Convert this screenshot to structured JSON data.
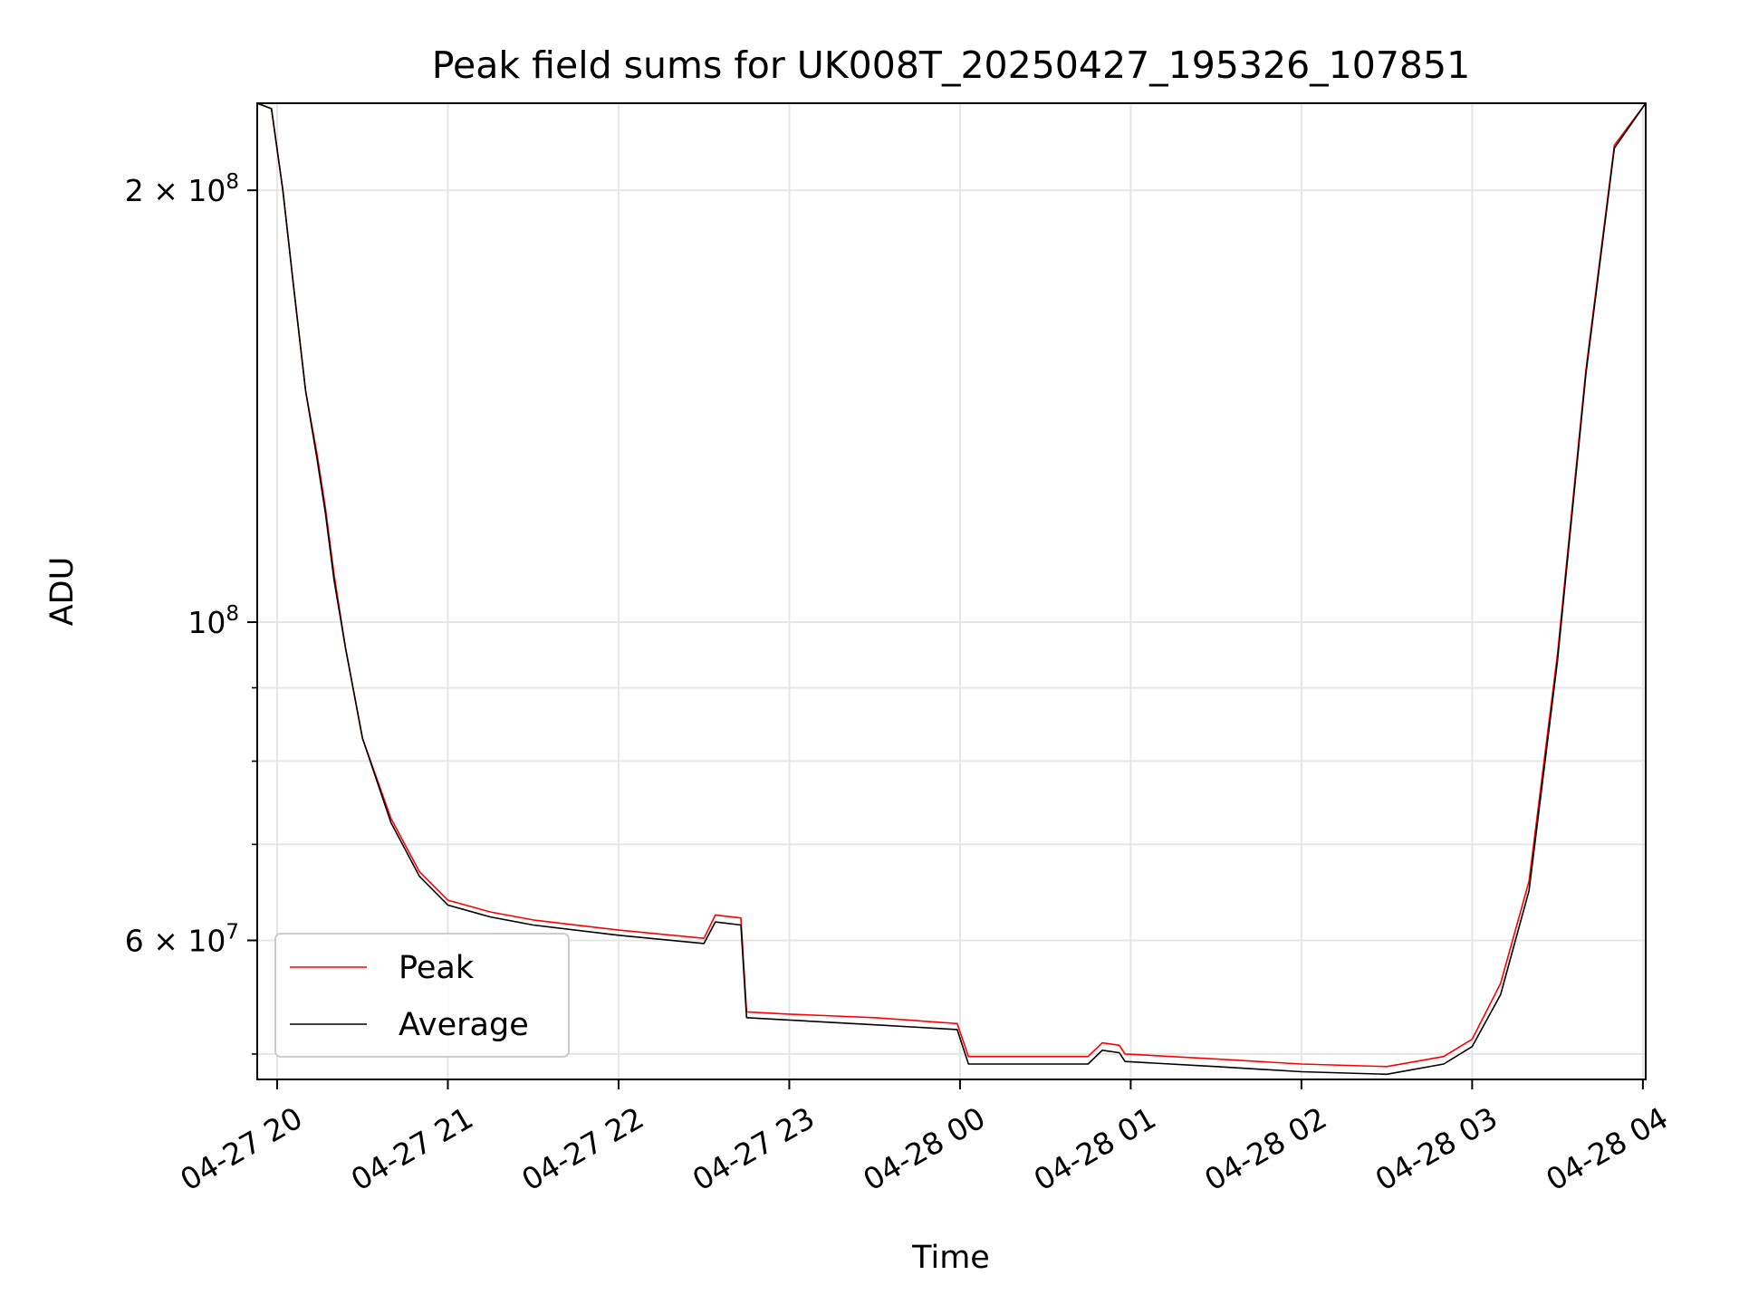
{
  "chart_data": {
    "type": "line",
    "title": "Peak field sums for UK008T_20250427_195326_107851",
    "xlabel": "Time",
    "ylabel": "ADU",
    "yscale": "log",
    "ylim": [
      48000000,
      230000000
    ],
    "xlim": [
      "2025-04-27 19:53",
      "2025-04-28 04:01"
    ],
    "grid": true,
    "legend_position": "lower left",
    "x_ticks": [
      {
        "at": "2025-04-27 20:00",
        "label": "04-27 20"
      },
      {
        "at": "2025-04-27 21:00",
        "label": "04-27 21"
      },
      {
        "at": "2025-04-27 22:00",
        "label": "04-27 22"
      },
      {
        "at": "2025-04-27 23:00",
        "label": "04-27 23"
      },
      {
        "at": "2025-04-28 00:00",
        "label": "04-28 00"
      },
      {
        "at": "2025-04-28 01:00",
        "label": "04-28 01"
      },
      {
        "at": "2025-04-28 02:00",
        "label": "04-28 02"
      },
      {
        "at": "2025-04-28 03:00",
        "label": "04-28 03"
      },
      {
        "at": "2025-04-28 04:00",
        "label": "04-28 04"
      }
    ],
    "y_major_ticks": [
      {
        "value": 200000000,
        "base": "2 × 10",
        "exp": "8"
      },
      {
        "value": 100000000,
        "base": "10",
        "exp": "8"
      },
      {
        "value": 60000000,
        "base": "6 × 10",
        "exp": "7"
      }
    ],
    "y_minor_ticks": [
      50000000,
      70000000,
      80000000,
      90000000
    ],
    "series": [
      {
        "name": "Peak",
        "color": "#ff0000",
        "points": [
          [
            "2025-04-27 19:53",
            230000000
          ],
          [
            "2025-04-27 19:58",
            228000000
          ],
          [
            "2025-04-27 20:02",
            200000000
          ],
          [
            "2025-04-27 20:06",
            170000000
          ],
          [
            "2025-04-27 20:10",
            145000000
          ],
          [
            "2025-04-27 20:14",
            131000000
          ],
          [
            "2025-04-27 20:17",
            120000000
          ],
          [
            "2025-04-27 20:20",
            108000000
          ],
          [
            "2025-04-27 20:24",
            96000000
          ],
          [
            "2025-04-27 20:30",
            83000000
          ],
          [
            "2025-04-27 20:40",
            73000000
          ],
          [
            "2025-04-27 20:50",
            67000000
          ],
          [
            "2025-04-27 21:00",
            64000000
          ],
          [
            "2025-04-27 21:15",
            62800000
          ],
          [
            "2025-04-27 21:30",
            62000000
          ],
          [
            "2025-04-27 22:00",
            61000000
          ],
          [
            "2025-04-27 22:30",
            60200000
          ],
          [
            "2025-04-27 22:34",
            62500000
          ],
          [
            "2025-04-27 22:43",
            62200000
          ],
          [
            "2025-04-27 22:45",
            53500000
          ],
          [
            "2025-04-27 23:00",
            53300000
          ],
          [
            "2025-04-27 23:30",
            53000000
          ],
          [
            "2025-04-27 23:59",
            52500000
          ],
          [
            "2025-04-28 00:03",
            49800000
          ],
          [
            "2025-04-28 00:45",
            49800000
          ],
          [
            "2025-04-28 00:50",
            50900000
          ],
          [
            "2025-04-28 00:56",
            50700000
          ],
          [
            "2025-04-28 00:58",
            50000000
          ],
          [
            "2025-04-28 01:30",
            49600000
          ],
          [
            "2025-04-28 02:00",
            49200000
          ],
          [
            "2025-04-28 02:30",
            49000000
          ],
          [
            "2025-04-28 02:50",
            49800000
          ],
          [
            "2025-04-28 03:00",
            51200000
          ],
          [
            "2025-04-28 03:10",
            56000000
          ],
          [
            "2025-04-28 03:20",
            66000000
          ],
          [
            "2025-04-28 03:30",
            95000000
          ],
          [
            "2025-04-28 03:40",
            150000000
          ],
          [
            "2025-04-28 03:50",
            215000000
          ],
          [
            "2025-04-28 04:01",
            230000000
          ]
        ]
      },
      {
        "name": "Average",
        "color": "#000000",
        "points": [
          [
            "2025-04-27 19:53",
            230000000
          ],
          [
            "2025-04-27 19:58",
            228000000
          ],
          [
            "2025-04-27 20:02",
            200000000
          ],
          [
            "2025-04-27 20:06",
            170000000
          ],
          [
            "2025-04-27 20:10",
            145000000
          ],
          [
            "2025-04-27 20:14",
            130000000
          ],
          [
            "2025-04-27 20:17",
            119000000
          ],
          [
            "2025-04-27 20:20",
            107000000
          ],
          [
            "2025-04-27 20:24",
            96000000
          ],
          [
            "2025-04-27 20:30",
            83000000
          ],
          [
            "2025-04-27 20:40",
            72500000
          ],
          [
            "2025-04-27 20:50",
            66500000
          ],
          [
            "2025-04-27 21:00",
            63500000
          ],
          [
            "2025-04-27 21:15",
            62300000
          ],
          [
            "2025-04-27 21:30",
            61500000
          ],
          [
            "2025-04-27 22:00",
            60500000
          ],
          [
            "2025-04-27 22:30",
            59700000
          ],
          [
            "2025-04-27 22:34",
            61800000
          ],
          [
            "2025-04-27 22:43",
            61500000
          ],
          [
            "2025-04-27 22:45",
            53000000
          ],
          [
            "2025-04-27 23:00",
            52800000
          ],
          [
            "2025-04-27 23:30",
            52400000
          ],
          [
            "2025-04-27 23:59",
            52000000
          ],
          [
            "2025-04-28 00:03",
            49200000
          ],
          [
            "2025-04-28 00:45",
            49200000
          ],
          [
            "2025-04-28 00:50",
            50300000
          ],
          [
            "2025-04-28 00:56",
            50100000
          ],
          [
            "2025-04-28 00:58",
            49400000
          ],
          [
            "2025-04-28 01:30",
            49000000
          ],
          [
            "2025-04-28 02:00",
            48600000
          ],
          [
            "2025-04-28 02:30",
            48400000
          ],
          [
            "2025-04-28 02:50",
            49200000
          ],
          [
            "2025-04-28 03:00",
            50600000
          ],
          [
            "2025-04-28 03:10",
            55000000
          ],
          [
            "2025-04-28 03:20",
            65000000
          ],
          [
            "2025-04-28 03:30",
            94000000
          ],
          [
            "2025-04-28 03:40",
            149000000
          ],
          [
            "2025-04-28 03:50",
            214000000
          ],
          [
            "2025-04-28 04:01",
            230000000
          ]
        ]
      }
    ]
  }
}
